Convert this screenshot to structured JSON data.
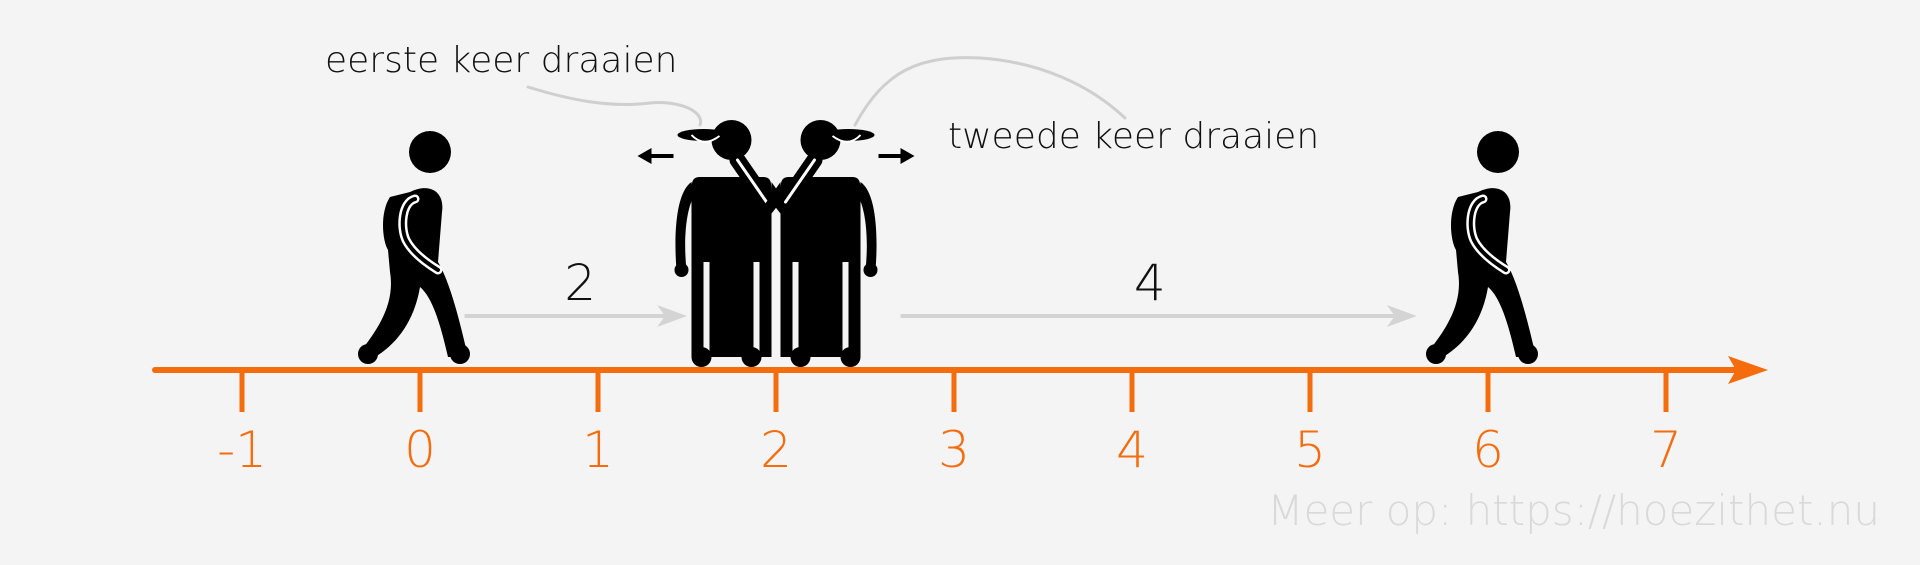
{
  "colors": {
    "background": "#f4f4f4",
    "axis": "#f56c0d",
    "arrow": "#d4d4d4",
    "figure": "#000000",
    "leader": "#cfcfcf",
    "watermark": "#d9d9d9"
  },
  "number_line": {
    "ticks": [
      "-1",
      "0",
      "1",
      "2",
      "3",
      "4",
      "5",
      "6",
      "7"
    ],
    "min": -1,
    "max": 7
  },
  "figures": [
    {
      "id": "walker-start",
      "kind": "walking-person-icon",
      "position": 0
    },
    {
      "id": "turner-first",
      "kind": "turning-person-icon",
      "position": 1.75,
      "direction": "left"
    },
    {
      "id": "turner-second",
      "kind": "turning-person-icon",
      "position": 2.25,
      "direction": "right"
    },
    {
      "id": "walker-end",
      "kind": "walking-person-icon",
      "position": 6
    }
  ],
  "steps": [
    {
      "label": "2",
      "from": 0.25,
      "to": 1.5,
      "label_at": 0.9
    },
    {
      "label": "4",
      "from": 2.7,
      "to": 5.6,
      "label_at": 4.1
    }
  ],
  "annotations": {
    "first_turn": "eerste keer draaien",
    "second_turn": "tweede keer draaien"
  },
  "watermark": "Meer op: https://hoezithet.nu"
}
